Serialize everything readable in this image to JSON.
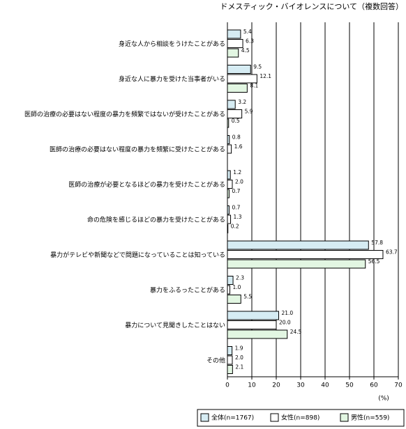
{
  "chart_data": {
    "type": "hbar",
    "title": "ドメスティック・バイオレンスについて（複数回答）",
    "x_unit": "(%)",
    "categories": [
      "身近な人から相談をうけたことがある",
      "身近な人に暴力を受けた当事者がいる",
      "医師の治療の必要はない程度の暴力を頻繁ではないが受けたことがある",
      "医師の治療の必要はない程度の暴力を頻繁に受けたことがある",
      "医師の治療が必要となるほどの暴力を受けたことがある",
      "命の危険を感じるほどの暴力を受けたことがある",
      "暴力がテレビや新聞などで問題になっていることは知っている",
      "暴力をふるったことがある",
      "暴力について見聞きしたことはない",
      "その他"
    ],
    "series": [
      {
        "name": "全体(n=1767)",
        "color": "#d6ecf3",
        "values": [
          5.4,
          9.5,
          3.2,
          0.8,
          1.2,
          0.7,
          57.8,
          2.3,
          21.0,
          1.9
        ],
        "value_labels": [
          "5.4",
          "9.5",
          "3.2",
          "0.8",
          "1.2",
          "0.7",
          "57.8",
          "2.3",
          "21.0",
          "1.9"
        ]
      },
      {
        "name": "女性(n=898)",
        "color": "#ffffff",
        "values": [
          6.3,
          12.1,
          5.9,
          1.6,
          2.0,
          1.3,
          63.7,
          1.0,
          20.0,
          2.0
        ],
        "value_labels": [
          "6.3",
          "12.1",
          "5.9",
          "1.6",
          "2.0",
          "1.3",
          "63.7",
          "1.0",
          "20.0",
          "2.0"
        ]
      },
      {
        "name": "男性(n=559)",
        "color": "#e2f6e2",
        "values": [
          4.5,
          8.1,
          0.5,
          null,
          0.7,
          0.2,
          56.5,
          5.5,
          24.5,
          2.1
        ],
        "value_labels": [
          "4.5",
          "8.1",
          "0.5",
          null,
          "0.7",
          "0.2",
          "56.5",
          "5.5",
          "24.5",
          "2.1"
        ]
      }
    ],
    "xlim": [
      0,
      70
    ],
    "xticks": [
      0,
      10,
      20,
      30,
      40,
      50,
      60,
      70
    ],
    "grid": true
  }
}
